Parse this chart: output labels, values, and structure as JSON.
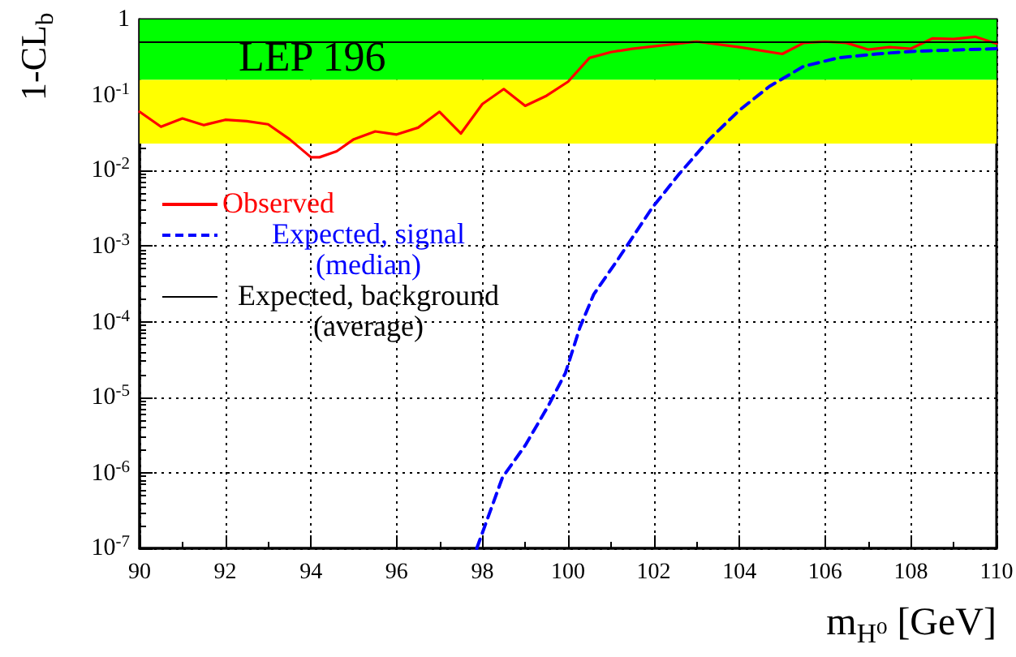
{
  "chart_data": {
    "type": "line",
    "xlabel": "m$_{H⁰}$ [GeV]",
    "ylabel": "1-CL$_{b}$",
    "annotations": [
      "LEP 196"
    ],
    "log": "y",
    "grid": true,
    "legend": "top left",
    "marker": "none",
    "xlim": [
      90,
      110
    ],
    "xticks": [
      90,
      92,
      94,
      96,
      98,
      100,
      102,
      104,
      106,
      108,
      110
    ],
    "ylim": [
      1e-07,
      1
    ],
    "yticks": [
      {
        "value": 1e-07,
        "label": "10$^{-7}$"
      },
      {
        "value": 1e-06,
        "label": "10$^{-6}$"
      },
      {
        "value": 1e-05,
        "label": "10$^{-5}$"
      },
      {
        "value": 0.0001,
        "label": "10$^{-4}$"
      },
      {
        "value": 0.001,
        "label": "10$^{-3}$"
      },
      {
        "value": 0.01,
        "label": "10$^{-2}$"
      },
      {
        "value": 0.1,
        "label": "10$^{-1}$"
      },
      {
        "value": 1,
        "label": "1"
      }
    ],
    "bands": [
      {
        "axis": "y",
        "from": 0.159,
        "to": 1,
        "color": "#00ff00"
      },
      {
        "axis": "y",
        "from": 0.0228,
        "to": 0.159,
        "color": "#ffff00"
      }
    ],
    "series": [
      {
        "name": "Observed",
        "color": "#ff0000",
        "line_style": "solid",
        "x": [
          90,
          90.5,
          91,
          91.5,
          92,
          92.5,
          93,
          93.5,
          94,
          94.2,
          94.6,
          95,
          95.5,
          96,
          96.5,
          97,
          97.5,
          98,
          98.5,
          99,
          99.5,
          100,
          100.5,
          101,
          101.5,
          102,
          103,
          104,
          105,
          105.5,
          106,
          106.5,
          107,
          107.5,
          108,
          108.5,
          109,
          109.5,
          110
        ],
        "values": [
          0.06,
          0.038,
          0.049,
          0.04,
          0.047,
          0.045,
          0.041,
          0.026,
          0.015,
          0.015,
          0.018,
          0.026,
          0.033,
          0.03,
          0.037,
          0.06,
          0.031,
          0.076,
          0.12,
          0.072,
          0.098,
          0.15,
          0.31,
          0.37,
          0.41,
          0.44,
          0.51,
          0.43,
          0.35,
          0.49,
          0.51,
          0.49,
          0.4,
          0.43,
          0.41,
          0.56,
          0.55,
          0.59,
          0.48
        ]
      },
      {
        "name": "Expected, signal (median)",
        "color": "#0000ff",
        "line_style": "dashed",
        "x": [
          97.87,
          98.47,
          99,
          99.55,
          99.94,
          100.28,
          100.6,
          101.15,
          101.96,
          102.6,
          103.3,
          104,
          104.7,
          105.5,
          106.3,
          107.2,
          108.1,
          110
        ],
        "values": [
          1e-07,
          8.7e-07,
          2.3e-06,
          7.9e-06,
          2.1e-05,
          8.5e-05,
          0.00023,
          0.00065,
          0.0032,
          0.0091,
          0.026,
          0.063,
          0.13,
          0.24,
          0.31,
          0.35,
          0.38,
          0.41
        ]
      },
      {
        "name": "Expected, background (average)",
        "color": "#000000",
        "line_style": "solid",
        "x": [
          90,
          110
        ],
        "values": [
          0.5,
          0.5
        ]
      }
    ]
  }
}
